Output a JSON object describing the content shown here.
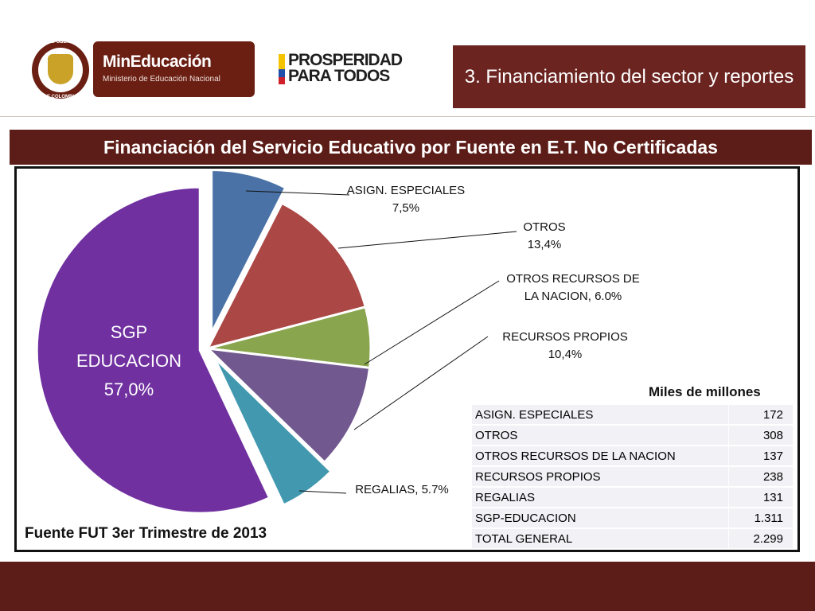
{
  "header": {
    "seal_top_text": "REPÚBLICA",
    "seal_bottom_text": "DE COLOMBIA",
    "ministry_title": "MinEducación",
    "ministry_subtitle": "Ministerio de Educación Nacional",
    "prosperity_line1": "PROSPERIDAD",
    "prosperity_line2": "PARA TODOS",
    "section_title": "3. Financiamiento del sector y reportes"
  },
  "banner_title": "Financiación del Servicio Educativo por Fuente en E.T. No Certificadas",
  "chart_data": {
    "type": "pie",
    "slices": [
      {
        "name": "ASIGN. ESPECIALES",
        "label": "ASIGN. ESPECIALES",
        "pct_label": "7,5%",
        "value": 7.5,
        "color": "#4a72a6"
      },
      {
        "name": "OTROS",
        "label": "OTROS",
        "pct_label": "13,4%",
        "value": 13.4,
        "color": "#ab4744"
      },
      {
        "name": "OTROS RECURSOS DE LA NACION",
        "label": "OTROS RECURSOS DE",
        "label2": "LA NACION, 6.0%",
        "value": 6.0,
        "color": "#89a54e"
      },
      {
        "name": "RECURSOS PROPIOS",
        "label": "RECURSOS PROPIOS",
        "pct_label": "10,4%",
        "value": 10.4,
        "color": "#71588f"
      },
      {
        "name": "REGALIAS",
        "label": "REGALIAS, 5.7%",
        "value": 5.7,
        "color": "#4198af"
      },
      {
        "name": "SGP EDUCACION",
        "label": "SGP",
        "label2": "EDUCACION",
        "pct_label": "57,0%",
        "value": 57.0,
        "color": "#7030a0"
      }
    ]
  },
  "table": {
    "unit_label": "Miles de millones",
    "rows": [
      {
        "label": "ASIGN. ESPECIALES",
        "value": "172"
      },
      {
        "label": "OTROS",
        "value": "308"
      },
      {
        "label": "OTROS RECURSOS DE LA NACION",
        "value": "137"
      },
      {
        "label": "RECURSOS PROPIOS",
        "value": "238"
      },
      {
        "label": "REGALIAS",
        "value": "131"
      },
      {
        "label": "SGP-EDUCACION",
        "value": "1.311"
      },
      {
        "label": "TOTAL GENERAL",
        "value": "2.299"
      }
    ]
  },
  "source_note": "Fuente FUT 3er Trimestre de 2013"
}
